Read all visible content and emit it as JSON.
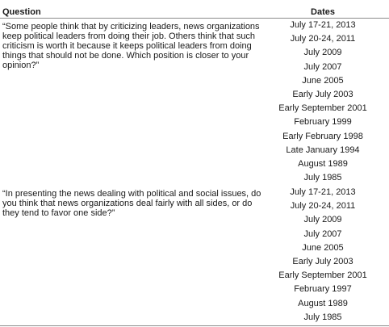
{
  "table": {
    "header": {
      "question_label": "Question",
      "dates_label": "Dates"
    },
    "rows": [
      {
        "question": "“Some people think that by criticizing leaders, news organizations keep political leaders from doing their job. Others think that such criticism is worth it because it keeps political leaders from doing things that should not be done. Which position is closer to your opinion?”",
        "dates": [
          "July 17-21, 2013",
          "July 20-24, 2011",
          "July 2009",
          "July 2007",
          "June 2005",
          "Early July 2003",
          "Early September 2001",
          "February 1999",
          "Early February 1998",
          "Late January 1994",
          "August 1989",
          "July 1985"
        ]
      },
      {
        "question": "“In presenting the news dealing with political and social issues, do you think that news organizations deal fairly with all sides, or do they tend to favor one side?”",
        "dates": [
          "July 17-21, 2013",
          "July 20-24, 2011",
          "July 2009",
          "July 2007",
          "June 2005",
          "Early July 2003",
          "Early September 2001",
          "February 1997",
          "August 1989",
          "July 1985"
        ]
      }
    ]
  }
}
